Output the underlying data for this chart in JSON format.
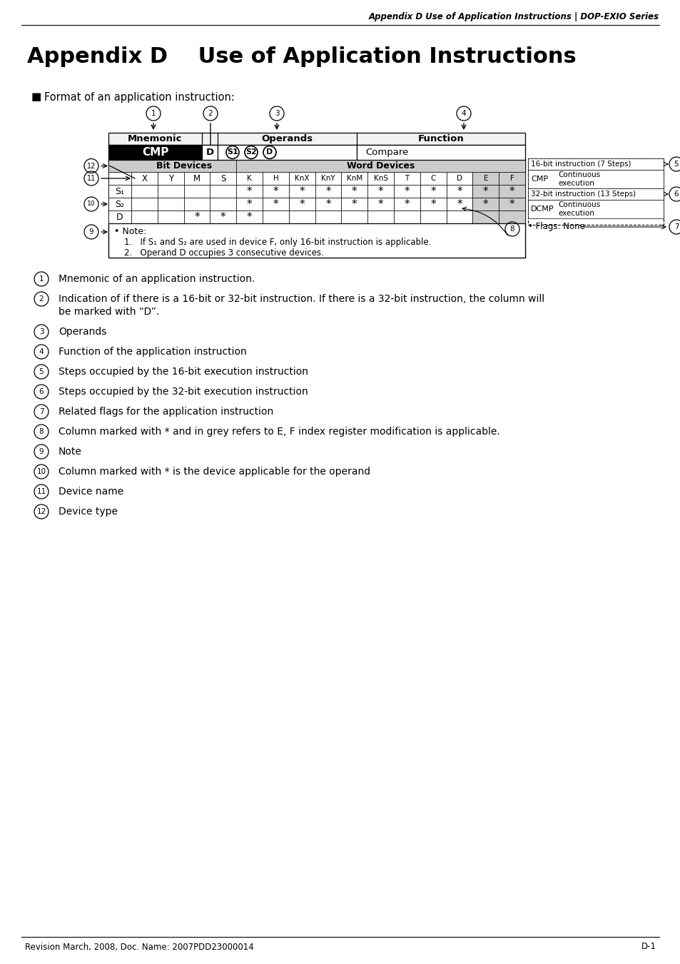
{
  "title_header": "Appendix D Use of Application Instructions | DOP-EXIO Series",
  "main_title": "Appendix D    Use of Application Instructions",
  "bullet_text": "Format of an application instruction:",
  "bit_devices": [
    "X",
    "Y",
    "M",
    "S"
  ],
  "word_devices": [
    "K",
    "H",
    "KnX",
    "KnY",
    "KnM",
    "KnS",
    "T",
    "C",
    "D",
    "E",
    "F"
  ],
  "operand_rows": [
    {
      "name": "S₁",
      "bit": [
        false,
        false,
        false,
        false
      ],
      "word": [
        true,
        true,
        true,
        true,
        true,
        true,
        true,
        true,
        true,
        true,
        true
      ]
    },
    {
      "name": "S₂",
      "bit": [
        false,
        false,
        false,
        false
      ],
      "word": [
        true,
        true,
        true,
        true,
        true,
        true,
        true,
        true,
        true,
        true,
        true
      ]
    },
    {
      "name": "D",
      "bit": [
        false,
        false,
        true,
        true
      ],
      "word": [
        true,
        false,
        false,
        false,
        false,
        false,
        false,
        false,
        false,
        false,
        false
      ]
    }
  ],
  "right_box_16bit": "16-bit instruction (7 Steps)",
  "right_box_32bit": "32-bit instruction (13 Steps)",
  "right_flags": "• Flags: None",
  "numbered_items": [
    [
      "Mnemonic of an application instruction."
    ],
    [
      "Indication of if there is a 16-bit or 32-bit instruction. If there is a 32-bit instruction, the column will",
      "be marked with “D”."
    ],
    [
      "Operands"
    ],
    [
      "Function of the application instruction"
    ],
    [
      "Steps occupied by the 16-bit execution instruction"
    ],
    [
      "Steps occupied by the 32-bit execution instruction"
    ],
    [
      "Related flags for the application instruction"
    ],
    [
      "Column marked with * and in grey refers to E, F index register modification is applicable."
    ],
    [
      "Note"
    ],
    [
      "Column marked with * is the device applicable for the operand"
    ],
    [
      "Device name"
    ],
    [
      "Device type"
    ]
  ],
  "footer_left": "Revision March, 2008, Doc. Name: 2007PDD23000014",
  "footer_right": "D-1"
}
